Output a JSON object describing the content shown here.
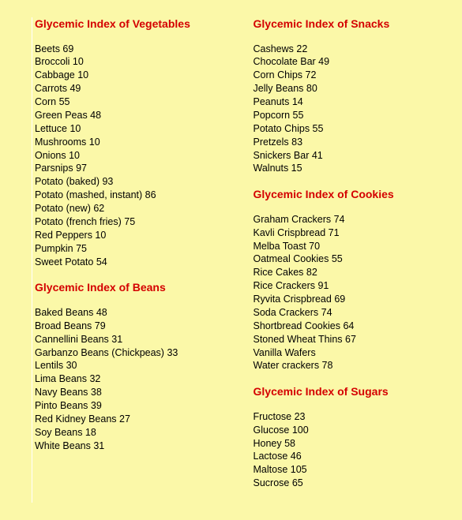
{
  "colors": {
    "background": "#fbf8a8",
    "heading": "#d40000",
    "text": "#000000",
    "divider": "#ffffff"
  },
  "typography": {
    "heading_fontsize": 14,
    "body_fontsize": 12.5,
    "font_family": "Verdana, Geneva, sans-serif"
  },
  "columns": [
    {
      "sections": [
        {
          "heading": "Glycemic Index of Vegetables",
          "items": [
            "Beets 69",
            "Broccoli 10",
            "Cabbage 10",
            "Carrots 49",
            "Corn 55",
            "Green Peas 48",
            "Lettuce 10",
            "Mushrooms 10",
            "Onions 10",
            "Parsnips 97",
            "Potato (baked) 93",
            "Potato (mashed, instant) 86",
            "Potato (new) 62",
            "Potato (french fries) 75",
            "Red Peppers 10",
            "Pumpkin 75",
            "Sweet Potato 54"
          ]
        },
        {
          "heading": "Glycemic Index of Beans",
          "items": [
            "Baked Beans 48",
            "Broad Beans 79",
            "Cannellini Beans 31",
            "Garbanzo Beans (Chickpeas) 33",
            "Lentils 30",
            "Lima Beans 32",
            "Navy Beans 38",
            "Pinto Beans 39",
            "Red Kidney Beans 27",
            "Soy Beans 18",
            "White Beans 31"
          ]
        }
      ]
    },
    {
      "sections": [
        {
          "heading": "Glycemic Index of Snacks",
          "items": [
            "Cashews 22",
            "Chocolate Bar 49",
            "Corn Chips 72",
            "Jelly Beans 80",
            "Peanuts 14",
            "Popcorn 55",
            "Potato Chips 55",
            "Pretzels 83",
            "Snickers Bar 41",
            "Walnuts 15"
          ]
        },
        {
          "heading": "Glycemic Index of Cookies",
          "items": [
            "Graham Crackers 74",
            "Kavli Crispbread 71",
            "Melba Toast 70",
            "Oatmeal Cookies 55",
            "Rice Cakes 82",
            "Rice Crackers 91",
            "Ryvita Crispbread 69",
            "Soda Crackers 74",
            "Shortbread Cookies 64",
            "Stoned Wheat Thins 67",
            "Vanilla Wafers",
            "Water crackers 78"
          ]
        },
        {
          "heading": "Glycemic Index of Sugars",
          "items": [
            "Fructose 23",
            "Glucose 100",
            "Honey 58",
            "Lactose 46",
            "Maltose 105",
            "Sucrose 65"
          ]
        }
      ]
    }
  ]
}
